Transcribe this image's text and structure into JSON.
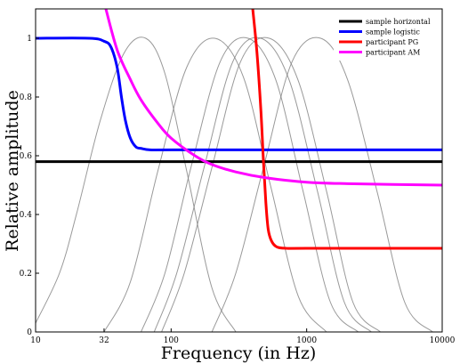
{
  "chart_data": {
    "type": "line",
    "title": "",
    "xlabel": "Frequency (in Hz)",
    "ylabel": "Relative amplitude",
    "x_scale": "log",
    "xlim": [
      10,
      10000
    ],
    "ylim": [
      0,
      1.1
    ],
    "x_ticks": [
      10,
      32,
      100,
      1000,
      10000
    ],
    "x_tick_labels": [
      "10",
      "32",
      "100",
      "1000",
      "10000"
    ],
    "y_ticks": [
      0,
      0.2,
      0.4,
      0.6,
      0.8,
      1
    ],
    "y_tick_labels": [
      "0",
      "0.2",
      "0.4",
      "0.6",
      "0.8",
      "1"
    ],
    "grid": false,
    "legend_position": "top-right",
    "series": [
      {
        "name": "sample horizontal",
        "color": "#000000",
        "x": [
          10,
          10000
        ],
        "y": [
          0.58,
          0.58
        ]
      },
      {
        "name": "sample logistic",
        "color": "#0000ff",
        "x": [
          10,
          25,
          32,
          36,
          40,
          43,
          46,
          50,
          55,
          60,
          70,
          100,
          1000,
          10000
        ],
        "y": [
          1.0,
          1.0,
          0.99,
          0.97,
          0.9,
          0.8,
          0.72,
          0.66,
          0.63,
          0.625,
          0.62,
          0.62,
          0.62,
          0.62
        ]
      },
      {
        "name": "participant PG",
        "color": "#ff0000",
        "x": [
          400,
          430,
          460,
          480,
          500,
          520,
          550,
          600,
          700,
          1000,
          10000
        ],
        "y": [
          1.1,
          0.95,
          0.75,
          0.58,
          0.44,
          0.35,
          0.31,
          0.29,
          0.285,
          0.285,
          0.285
        ]
      },
      {
        "name": "participant AM",
        "color": "#ff00ff",
        "x": [
          33,
          40,
          50,
          60,
          80,
          100,
          150,
          200,
          300,
          500,
          1000,
          2000,
          10000
        ],
        "y": [
          1.1,
          0.96,
          0.86,
          0.79,
          0.71,
          0.66,
          0.6,
          0.57,
          0.545,
          0.525,
          0.51,
          0.505,
          0.5
        ]
      },
      {
        "name": "",
        "color": "#808080",
        "x": [
          10,
          15,
          20,
          30,
          45,
          65,
          90,
          130,
          200,
          300
        ],
        "y": [
          0.03,
          0.2,
          0.4,
          0.72,
          0.95,
          1.0,
          0.88,
          0.55,
          0.15,
          0.0
        ]
      },
      {
        "name": "",
        "color": "#808080",
        "x": [
          32,
          50,
          80,
          130,
          210,
          340,
          540,
          870,
          1400
        ],
        "y": [
          0.0,
          0.17,
          0.55,
          0.9,
          1.0,
          0.87,
          0.5,
          0.12,
          0.0
        ]
      },
      {
        "name": "",
        "color": "#808080",
        "x": [
          60,
          90,
          140,
          230,
          370,
          590,
          940,
          1500,
          2400
        ],
        "y": [
          0.0,
          0.2,
          0.56,
          0.92,
          1.0,
          0.86,
          0.48,
          0.1,
          0.0
        ]
      },
      {
        "name": "",
        "color": "#808080",
        "x": [
          75,
          110,
          175,
          285,
          460,
          740,
          1200,
          1900,
          3000
        ],
        "y": [
          0.0,
          0.2,
          0.56,
          0.92,
          1.0,
          0.86,
          0.48,
          0.1,
          0.0
        ]
      },
      {
        "name": "",
        "color": "#808080",
        "x": [
          85,
          125,
          200,
          325,
          530,
          860,
          1400,
          2200,
          3500
        ],
        "y": [
          0.0,
          0.2,
          0.56,
          0.92,
          1.0,
          0.86,
          0.48,
          0.1,
          0.0
        ]
      },
      {
        "name": "",
        "color": "#808080",
        "x": [
          200,
          300,
          480,
          780,
          1270,
          2000,
          3300,
          5300,
          8500
        ],
        "y": [
          0.0,
          0.2,
          0.56,
          0.92,
          1.0,
          0.86,
          0.48,
          0.1,
          0.0
        ]
      }
    ]
  }
}
